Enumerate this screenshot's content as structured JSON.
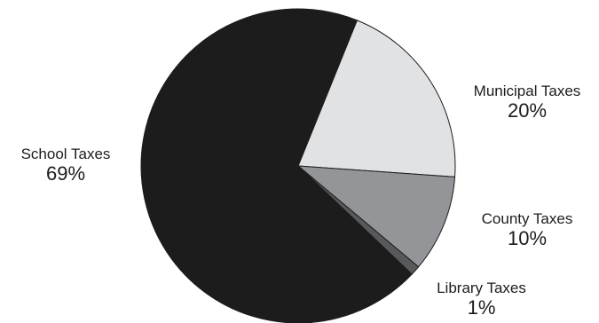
{
  "chart_data": {
    "type": "pie",
    "title": "",
    "slices": [
      {
        "label": "Municipal Taxes",
        "value": 20,
        "display": "20%",
        "color": "#e1e2e4"
      },
      {
        "label": "County Taxes",
        "value": 10,
        "display": "10%",
        "color": "#939598"
      },
      {
        "label": "Library Taxes",
        "value": 1,
        "display": "1%",
        "color": "#58595b"
      },
      {
        "label": "School Taxes",
        "value": 69,
        "display": "69%",
        "color": "#1c1c1c"
      }
    ],
    "outline_color": "#1c1c1c",
    "legend": "none"
  }
}
